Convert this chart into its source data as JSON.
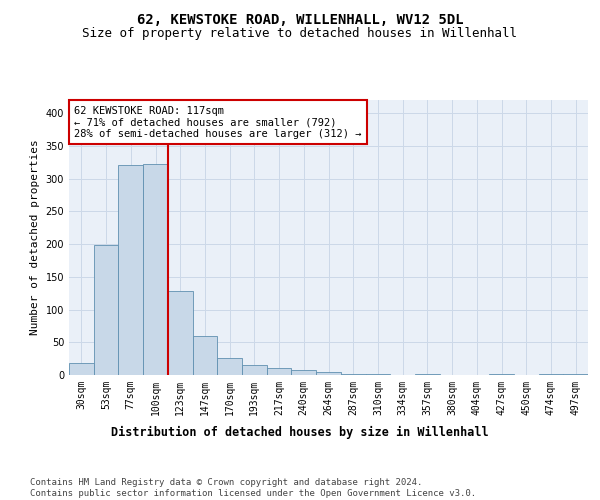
{
  "title": "62, KEWSTOKE ROAD, WILLENHALL, WV12 5DL",
  "subtitle": "Size of property relative to detached houses in Willenhall",
  "xlabel": "Distribution of detached houses by size in Willenhall",
  "ylabel": "Number of detached properties",
  "categories": [
    "30sqm",
    "53sqm",
    "77sqm",
    "100sqm",
    "123sqm",
    "147sqm",
    "170sqm",
    "193sqm",
    "217sqm",
    "240sqm",
    "264sqm",
    "287sqm",
    "310sqm",
    "334sqm",
    "357sqm",
    "380sqm",
    "404sqm",
    "427sqm",
    "450sqm",
    "474sqm",
    "497sqm"
  ],
  "values": [
    18,
    199,
    320,
    323,
    128,
    60,
    26,
    15,
    11,
    7,
    4,
    2,
    1,
    0,
    1,
    0,
    0,
    1,
    0,
    2,
    2
  ],
  "bar_color": "#c8d8e8",
  "bar_edge_color": "#6090b0",
  "grid_color": "#ccd8e8",
  "background_color": "#eaf0f8",
  "vline_x": 3.5,
  "vline_color": "#cc0000",
  "annotation_text": "62 KEWSTOKE ROAD: 117sqm\n← 71% of detached houses are smaller (792)\n28% of semi-detached houses are larger (312) →",
  "annotation_box_color": "#cc0000",
  "ylim": [
    0,
    420
  ],
  "yticks": [
    0,
    50,
    100,
    150,
    200,
    250,
    300,
    350,
    400
  ],
  "footer_text": "Contains HM Land Registry data © Crown copyright and database right 2024.\nContains public sector information licensed under the Open Government Licence v3.0.",
  "title_fontsize": 10,
  "subtitle_fontsize": 9,
  "xlabel_fontsize": 8.5,
  "ylabel_fontsize": 8,
  "tick_fontsize": 7,
  "footer_fontsize": 6.5,
  "ann_fontsize": 7.5
}
